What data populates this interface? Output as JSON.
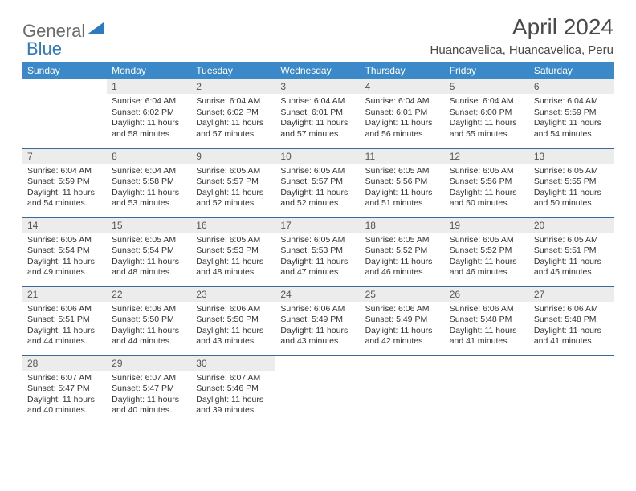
{
  "brand": {
    "part1": "General",
    "part2": "Blue"
  },
  "title": "April 2024",
  "location": "Huancavelica, Huancavelica, Peru",
  "colors": {
    "header_bg": "#3b89c9",
    "header_text": "#ffffff",
    "daynum_bg": "#ececec",
    "row_divider": "#3b6a9a",
    "title_color": "#4a4a4a",
    "logo_gray": "#6a6a6a",
    "logo_blue": "#2f7abf"
  },
  "weekdays": [
    "Sunday",
    "Monday",
    "Tuesday",
    "Wednesday",
    "Thursday",
    "Friday",
    "Saturday"
  ],
  "weeks": [
    [
      {
        "num": "",
        "sunrise": "",
        "sunset": "",
        "daylight": ""
      },
      {
        "num": "1",
        "sunrise": "Sunrise: 6:04 AM",
        "sunset": "Sunset: 6:02 PM",
        "daylight": "Daylight: 11 hours and 58 minutes."
      },
      {
        "num": "2",
        "sunrise": "Sunrise: 6:04 AM",
        "sunset": "Sunset: 6:02 PM",
        "daylight": "Daylight: 11 hours and 57 minutes."
      },
      {
        "num": "3",
        "sunrise": "Sunrise: 6:04 AM",
        "sunset": "Sunset: 6:01 PM",
        "daylight": "Daylight: 11 hours and 57 minutes."
      },
      {
        "num": "4",
        "sunrise": "Sunrise: 6:04 AM",
        "sunset": "Sunset: 6:01 PM",
        "daylight": "Daylight: 11 hours and 56 minutes."
      },
      {
        "num": "5",
        "sunrise": "Sunrise: 6:04 AM",
        "sunset": "Sunset: 6:00 PM",
        "daylight": "Daylight: 11 hours and 55 minutes."
      },
      {
        "num": "6",
        "sunrise": "Sunrise: 6:04 AM",
        "sunset": "Sunset: 5:59 PM",
        "daylight": "Daylight: 11 hours and 54 minutes."
      }
    ],
    [
      {
        "num": "7",
        "sunrise": "Sunrise: 6:04 AM",
        "sunset": "Sunset: 5:59 PM",
        "daylight": "Daylight: 11 hours and 54 minutes."
      },
      {
        "num": "8",
        "sunrise": "Sunrise: 6:04 AM",
        "sunset": "Sunset: 5:58 PM",
        "daylight": "Daylight: 11 hours and 53 minutes."
      },
      {
        "num": "9",
        "sunrise": "Sunrise: 6:05 AM",
        "sunset": "Sunset: 5:57 PM",
        "daylight": "Daylight: 11 hours and 52 minutes."
      },
      {
        "num": "10",
        "sunrise": "Sunrise: 6:05 AM",
        "sunset": "Sunset: 5:57 PM",
        "daylight": "Daylight: 11 hours and 52 minutes."
      },
      {
        "num": "11",
        "sunrise": "Sunrise: 6:05 AM",
        "sunset": "Sunset: 5:56 PM",
        "daylight": "Daylight: 11 hours and 51 minutes."
      },
      {
        "num": "12",
        "sunrise": "Sunrise: 6:05 AM",
        "sunset": "Sunset: 5:56 PM",
        "daylight": "Daylight: 11 hours and 50 minutes."
      },
      {
        "num": "13",
        "sunrise": "Sunrise: 6:05 AM",
        "sunset": "Sunset: 5:55 PM",
        "daylight": "Daylight: 11 hours and 50 minutes."
      }
    ],
    [
      {
        "num": "14",
        "sunrise": "Sunrise: 6:05 AM",
        "sunset": "Sunset: 5:54 PM",
        "daylight": "Daylight: 11 hours and 49 minutes."
      },
      {
        "num": "15",
        "sunrise": "Sunrise: 6:05 AM",
        "sunset": "Sunset: 5:54 PM",
        "daylight": "Daylight: 11 hours and 48 minutes."
      },
      {
        "num": "16",
        "sunrise": "Sunrise: 6:05 AM",
        "sunset": "Sunset: 5:53 PM",
        "daylight": "Daylight: 11 hours and 48 minutes."
      },
      {
        "num": "17",
        "sunrise": "Sunrise: 6:05 AM",
        "sunset": "Sunset: 5:53 PM",
        "daylight": "Daylight: 11 hours and 47 minutes."
      },
      {
        "num": "18",
        "sunrise": "Sunrise: 6:05 AM",
        "sunset": "Sunset: 5:52 PM",
        "daylight": "Daylight: 11 hours and 46 minutes."
      },
      {
        "num": "19",
        "sunrise": "Sunrise: 6:05 AM",
        "sunset": "Sunset: 5:52 PM",
        "daylight": "Daylight: 11 hours and 46 minutes."
      },
      {
        "num": "20",
        "sunrise": "Sunrise: 6:05 AM",
        "sunset": "Sunset: 5:51 PM",
        "daylight": "Daylight: 11 hours and 45 minutes."
      }
    ],
    [
      {
        "num": "21",
        "sunrise": "Sunrise: 6:06 AM",
        "sunset": "Sunset: 5:51 PM",
        "daylight": "Daylight: 11 hours and 44 minutes."
      },
      {
        "num": "22",
        "sunrise": "Sunrise: 6:06 AM",
        "sunset": "Sunset: 5:50 PM",
        "daylight": "Daylight: 11 hours and 44 minutes."
      },
      {
        "num": "23",
        "sunrise": "Sunrise: 6:06 AM",
        "sunset": "Sunset: 5:50 PM",
        "daylight": "Daylight: 11 hours and 43 minutes."
      },
      {
        "num": "24",
        "sunrise": "Sunrise: 6:06 AM",
        "sunset": "Sunset: 5:49 PM",
        "daylight": "Daylight: 11 hours and 43 minutes."
      },
      {
        "num": "25",
        "sunrise": "Sunrise: 6:06 AM",
        "sunset": "Sunset: 5:49 PM",
        "daylight": "Daylight: 11 hours and 42 minutes."
      },
      {
        "num": "26",
        "sunrise": "Sunrise: 6:06 AM",
        "sunset": "Sunset: 5:48 PM",
        "daylight": "Daylight: 11 hours and 41 minutes."
      },
      {
        "num": "27",
        "sunrise": "Sunrise: 6:06 AM",
        "sunset": "Sunset: 5:48 PM",
        "daylight": "Daylight: 11 hours and 41 minutes."
      }
    ],
    [
      {
        "num": "28",
        "sunrise": "Sunrise: 6:07 AM",
        "sunset": "Sunset: 5:47 PM",
        "daylight": "Daylight: 11 hours and 40 minutes."
      },
      {
        "num": "29",
        "sunrise": "Sunrise: 6:07 AM",
        "sunset": "Sunset: 5:47 PM",
        "daylight": "Daylight: 11 hours and 40 minutes."
      },
      {
        "num": "30",
        "sunrise": "Sunrise: 6:07 AM",
        "sunset": "Sunset: 5:46 PM",
        "daylight": "Daylight: 11 hours and 39 minutes."
      },
      {
        "num": "",
        "sunrise": "",
        "sunset": "",
        "daylight": ""
      },
      {
        "num": "",
        "sunrise": "",
        "sunset": "",
        "daylight": ""
      },
      {
        "num": "",
        "sunrise": "",
        "sunset": "",
        "daylight": ""
      },
      {
        "num": "",
        "sunrise": "",
        "sunset": "",
        "daylight": ""
      }
    ]
  ]
}
